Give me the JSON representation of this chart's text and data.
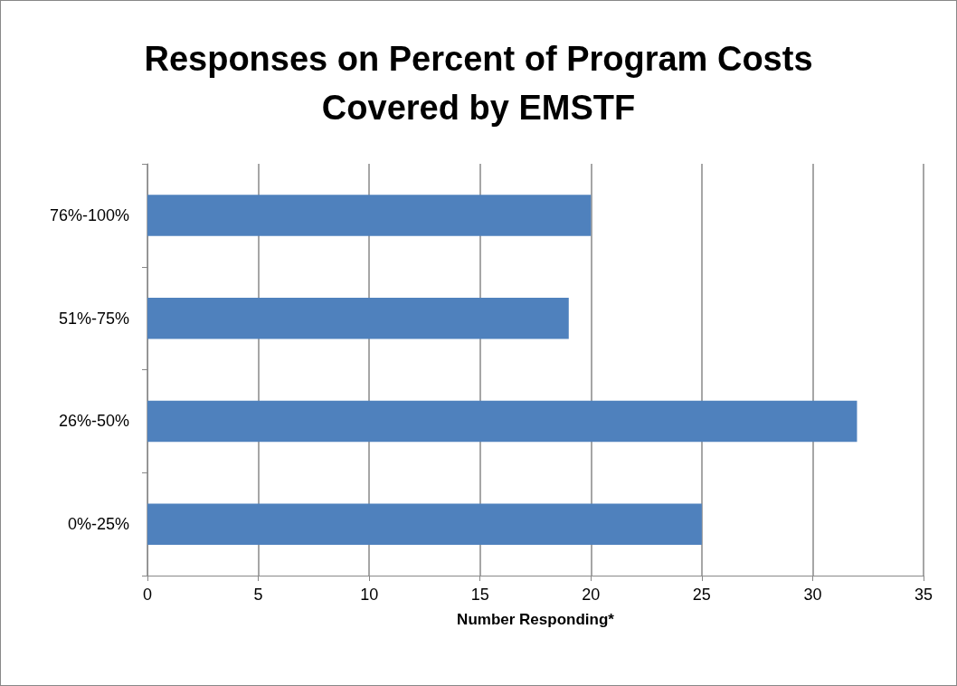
{
  "chart_data": {
    "type": "bar",
    "orientation": "horizontal",
    "title": "Responses on Percent of Program Costs\nCovered by EMSTF",
    "xlabel": "Number Responding*",
    "categories": [
      "76%-100%",
      "51%-75%",
      "26%-50%",
      "0%-25%"
    ],
    "values": [
      20,
      19,
      32,
      25
    ],
    "color": "#4f81bd",
    "xlim": [
      0,
      35
    ],
    "xticks": [
      0,
      5,
      10,
      15,
      20,
      25,
      30,
      35
    ],
    "grid": "x"
  }
}
